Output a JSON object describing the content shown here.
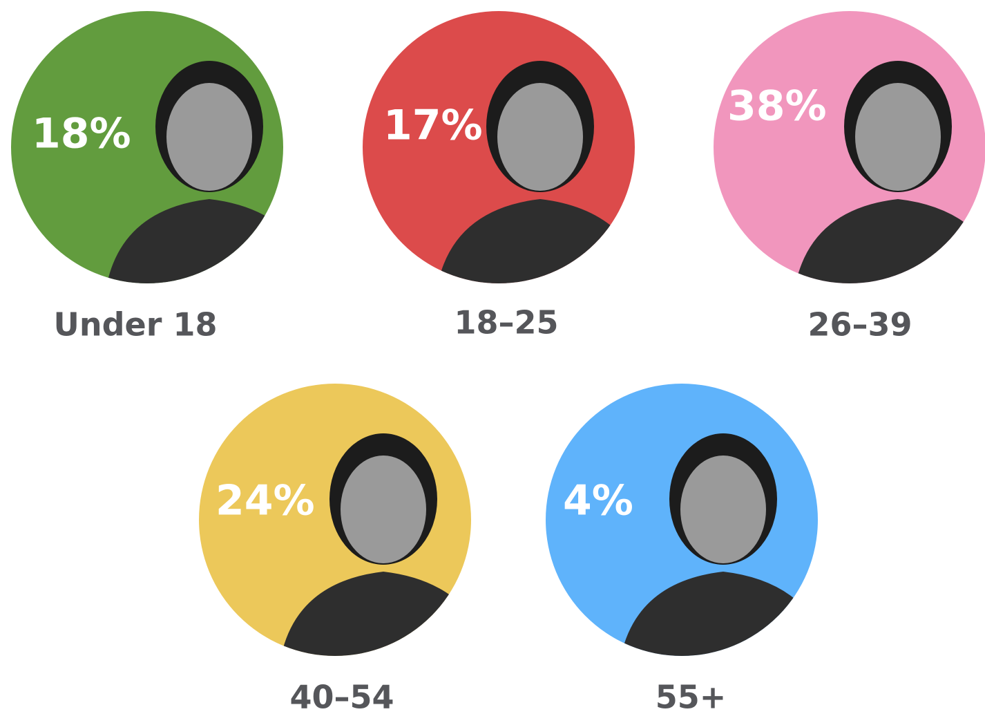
{
  "chart_data": {
    "type": "pictogram",
    "categories": [
      "Under 18",
      "18–25",
      "26–39",
      "40–54",
      "55+"
    ],
    "values": [
      18,
      17,
      38,
      24,
      4
    ],
    "value_labels": [
      "18%",
      "17%",
      "38%",
      "24%",
      "4%"
    ],
    "colors": [
      "#629c3e",
      "#dc4b4b",
      "#f196bd",
      "#ecc85a",
      "#5fb3fb"
    ]
  }
}
